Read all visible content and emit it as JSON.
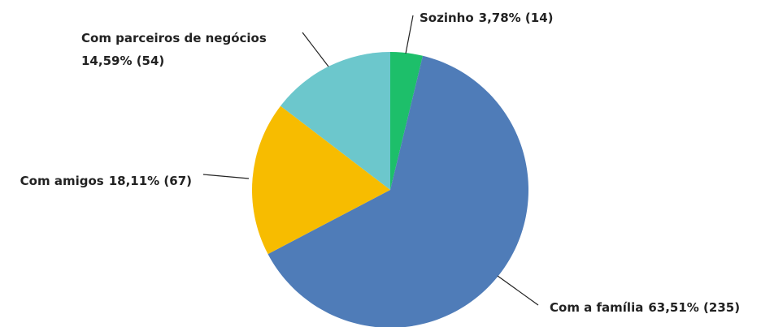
{
  "chart_data": {
    "type": "pie",
    "categories": [
      "Sozinho",
      "Com a família",
      "Com amigos",
      "Com parceiros de negócios"
    ],
    "values": [
      14,
      235,
      67,
      54
    ],
    "value_labels": [
      "3,78% (14)",
      "63,51% (235)",
      "18,11% (67)",
      "14,59% (54)"
    ],
    "colors": [
      "#1dbf6a",
      "#4f7cb8",
      "#f7bc00",
      "#6cc7cc"
    ]
  }
}
